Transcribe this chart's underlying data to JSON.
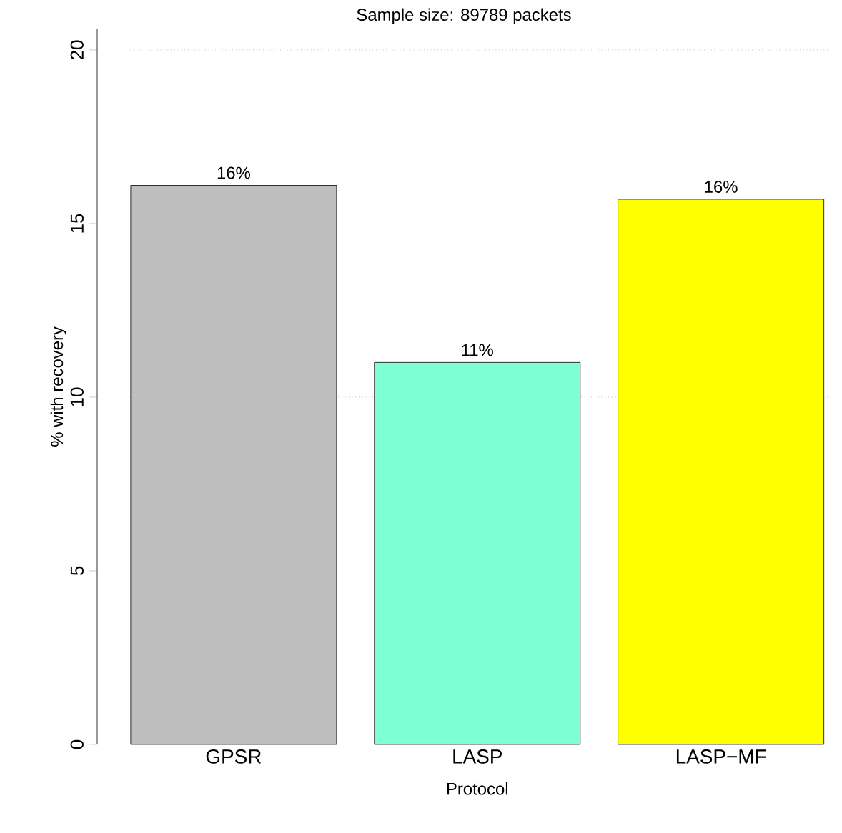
{
  "chart_data": {
    "type": "bar",
    "title": "Sample size: 89789 packets",
    "xlabel": "Protocol",
    "ylabel": "% with recovery",
    "categories": [
      "GPSR",
      "LASP",
      "LASP−MF"
    ],
    "values": [
      16.1,
      11.0,
      15.7
    ],
    "colors": [
      "#bebebe",
      "#7fffd4",
      "#ffff00"
    ],
    "value_labels": [
      "16%",
      "11%",
      "16%"
    ],
    "ylim": [
      0,
      20.6
    ],
    "yticks": [
      0,
      5,
      10,
      15,
      20
    ],
    "ref_lines": [
      {
        "axis": "y",
        "value": 10,
        "line_style": "dotted",
        "color": "#a0a0a0"
      },
      {
        "axis": "y",
        "value": 20,
        "line_style": "dotted",
        "color": "#a0a0a0"
      }
    ]
  }
}
